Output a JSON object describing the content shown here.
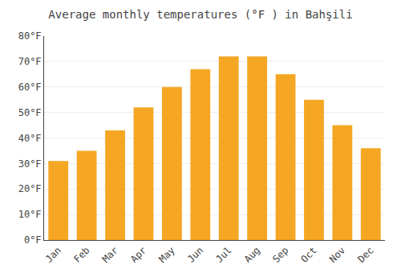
{
  "chart_data": {
    "type": "bar",
    "title": "Average monthly temperatures (°F ) in Bahşili",
    "categories": [
      "Jan",
      "Feb",
      "Mar",
      "Apr",
      "May",
      "Jun",
      "Jul",
      "Aug",
      "Sep",
      "Oct",
      "Nov",
      "Dec"
    ],
    "values": [
      31,
      35,
      43,
      52,
      60,
      67,
      72,
      72,
      65,
      55,
      45,
      36
    ],
    "color": "#F5A623",
    "ylim": [
      0,
      80
    ],
    "yticks": [
      {
        "value": 0,
        "label": "0°F"
      },
      {
        "value": 10,
        "label": "10°F"
      },
      {
        "value": 20,
        "label": "20°F"
      },
      {
        "value": 30,
        "label": "30°F"
      },
      {
        "value": 40,
        "label": "40°F"
      },
      {
        "value": 50,
        "label": "50°F"
      },
      {
        "value": 60,
        "label": "60°F"
      },
      {
        "value": 70,
        "label": "70°F"
      },
      {
        "value": 80,
        "label": "80°F"
      }
    ],
    "grid": true
  }
}
